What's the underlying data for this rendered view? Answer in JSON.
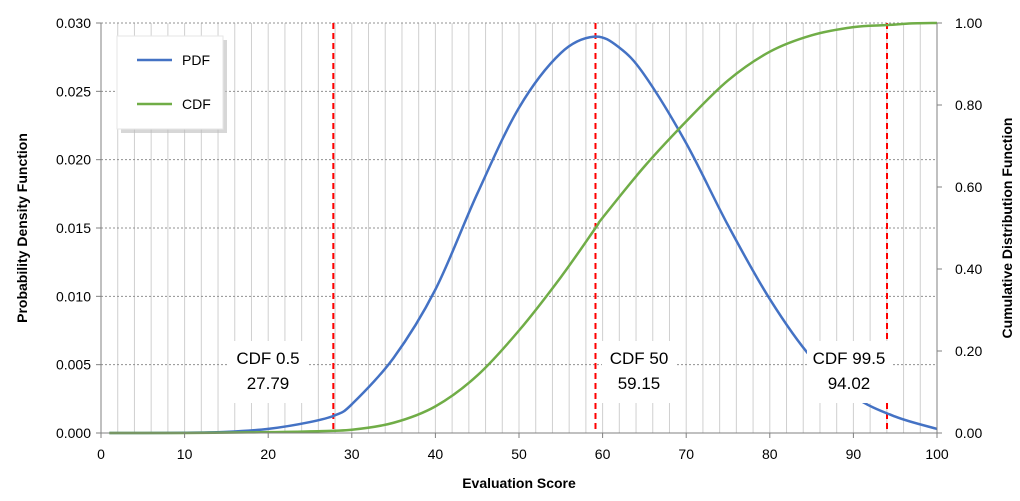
{
  "chart_data": {
    "type": "line",
    "xlabel": "Evaluation Score",
    "ylabel": "Probability Density Function",
    "y2label": "Cumulative Distribution Function",
    "xlim": [
      0,
      100
    ],
    "ylim": [
      0,
      0.03
    ],
    "y2lim": [
      0,
      1
    ],
    "xticks": [
      0,
      10,
      20,
      30,
      40,
      50,
      60,
      70,
      80,
      90,
      100
    ],
    "xtick_labels": [
      "0",
      "10",
      "20",
      "30",
      "40",
      "50",
      "60",
      "70",
      "80",
      "90",
      "100"
    ],
    "yticks": [
      0,
      0.005,
      0.01,
      0.015,
      0.02,
      0.025,
      0.03
    ],
    "ytick_labels": [
      "0.000",
      "0.005",
      "0.010",
      "0.015",
      "0.020",
      "0.025",
      "0.030"
    ],
    "y2ticks": [
      0,
      0.2,
      0.4,
      0.6,
      0.8,
      1
    ],
    "y2tick_labels": [
      "0.00",
      "0.20",
      "0.40",
      "0.60",
      "0.80",
      "1.00"
    ],
    "grid": {
      "horizontal": true,
      "vertical_minor": true
    },
    "legend_position": "top-left",
    "series": [
      {
        "name": "PDF",
        "axis": "left",
        "color": "#4472C4",
        "x": [
          1,
          5,
          10,
          15,
          20,
          25,
          28,
          30,
          35,
          40,
          45,
          50,
          55,
          59,
          62,
          65,
          70,
          75,
          80,
          85,
          90,
          95,
          100
        ],
        "y": [
          0.0,
          0.0,
          2e-05,
          8e-05,
          0.0003,
          0.0008,
          0.0013,
          0.0021,
          0.0055,
          0.0105,
          0.0175,
          0.0238,
          0.0278,
          0.029,
          0.0282,
          0.0262,
          0.0212,
          0.0152,
          0.0098,
          0.0055,
          0.0027,
          0.0012,
          0.0003
        ]
      },
      {
        "name": "CDF",
        "axis": "right",
        "color": "#70AD47",
        "x": [
          1,
          10,
          15,
          20,
          25,
          30,
          35,
          40,
          45,
          50,
          55,
          59.15,
          60,
          65,
          70,
          75,
          80,
          85,
          90,
          94.02,
          97,
          100
        ],
        "y": [
          0.0,
          0.0,
          0.001,
          0.002,
          0.004,
          0.008,
          0.025,
          0.065,
          0.14,
          0.25,
          0.38,
          0.5,
          0.525,
          0.65,
          0.76,
          0.86,
          0.93,
          0.97,
          0.99,
          0.995,
          0.999,
          1.0
        ]
      }
    ],
    "reference_lines": [
      {
        "x": 27.79,
        "color": "#FF0000",
        "label": "CDF 0.5",
        "value_label": "27.79"
      },
      {
        "x": 59.15,
        "color": "#FF0000",
        "label": "CDF 50",
        "value_label": "59.15"
      },
      {
        "x": 94.02,
        "color": "#FF0000",
        "label": "CDF 99.5",
        "value_label": "94.02"
      }
    ]
  }
}
